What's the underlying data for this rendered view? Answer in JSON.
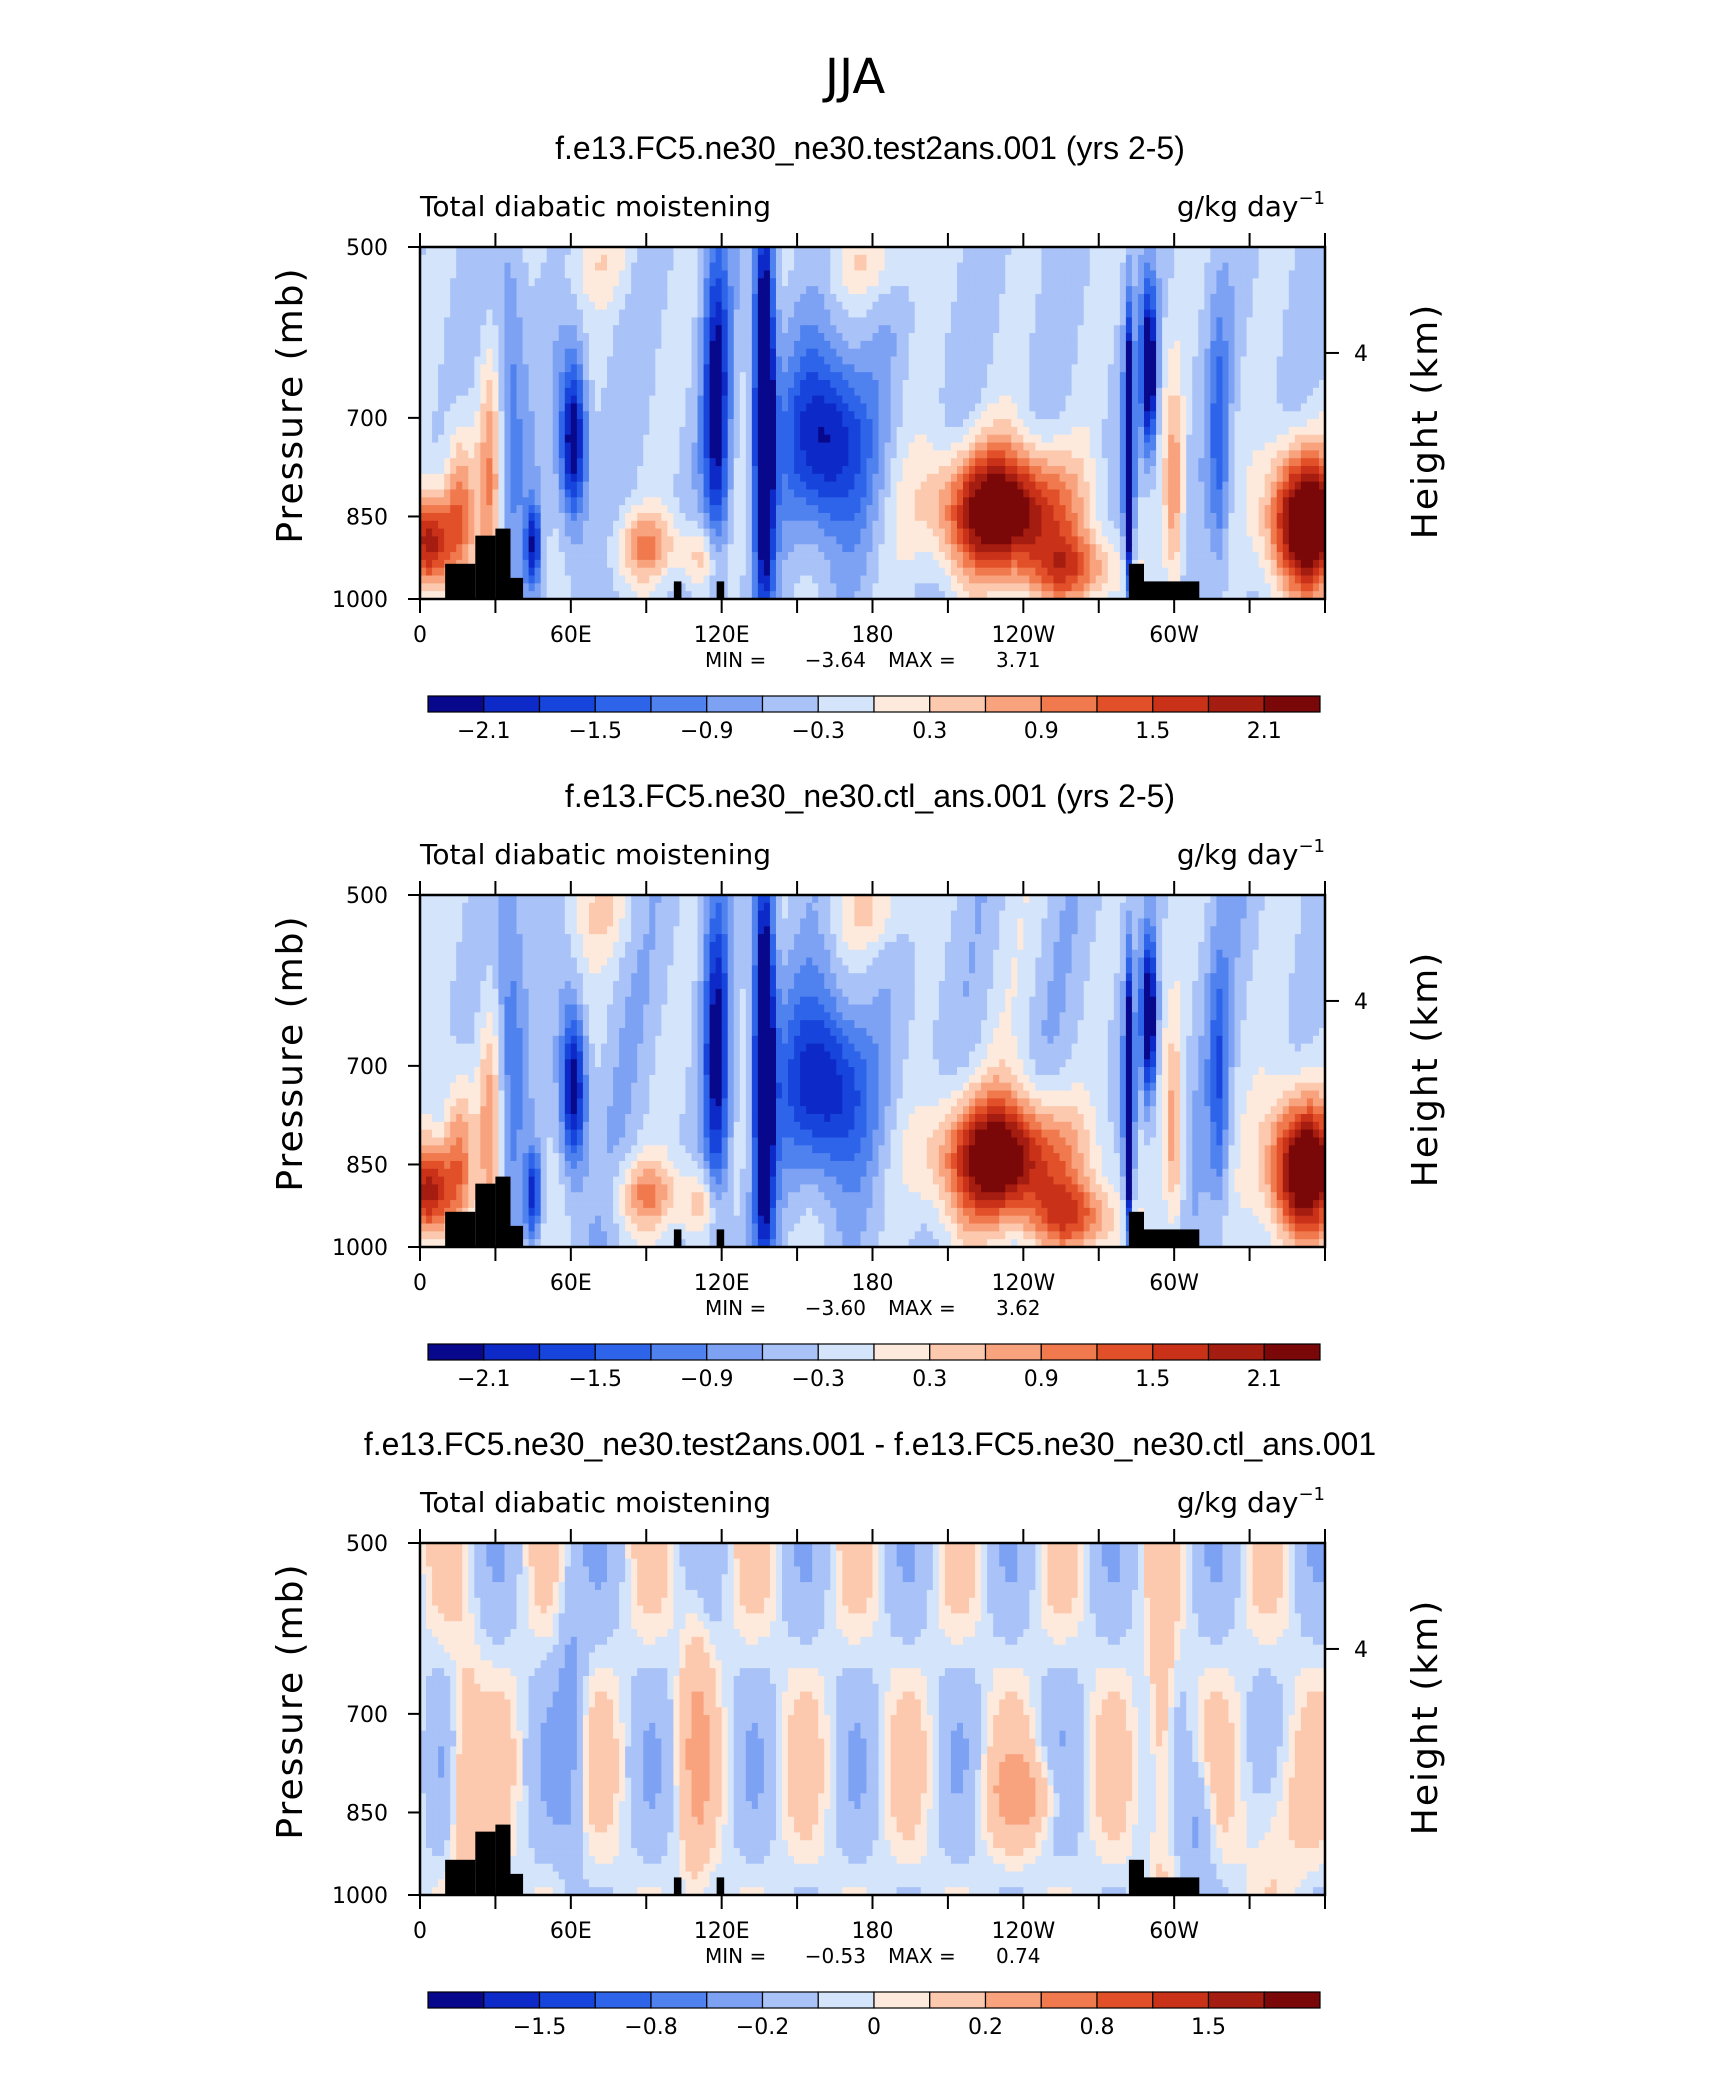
{
  "figure": {
    "main_title": "JJA"
  },
  "chart_data": [
    {
      "type": "heatmap",
      "title": "f.e13.FC5.ne30_ne30.test2ans.001 (yrs 2-5)",
      "left_label": "Total diabatic moistening",
      "units_label": "g/kg day",
      "units_exponent": "−1",
      "ylabel": "Pressure (mb)",
      "y2label": "Height (km)",
      "x_tick_labels": [
        "0",
        "60E",
        "120E",
        "180",
        "120W",
        "60W"
      ],
      "y_tick_labels": [
        "500",
        "700",
        "850",
        "1000"
      ],
      "y2_tick_labels": [
        "4"
      ],
      "minmax": {
        "min_label": "MIN =",
        "min": "−3.64",
        "max_label": "MAX =",
        "max": "3.71"
      },
      "colorbar": {
        "tick_labels": [
          "−2.1",
          "−1.5",
          "−0.9",
          "−0.3",
          "0.3",
          "0.9",
          "1.5",
          "2.1"
        ],
        "colors": [
          "#08088c",
          "#0d2ac8",
          "#1745dc",
          "#2e64ea",
          "#4f82ef",
          "#7ea2f3",
          "#a9c2f7",
          "#d4e4fb",
          "#feeadc",
          "#fcc9ae",
          "#f8a27e",
          "#f07a4e",
          "#e2502a",
          "#c93218",
          "#a51c10",
          "#7a0808"
        ]
      },
      "field_scale": 3.7
    },
    {
      "type": "heatmap",
      "title": "f.e13.FC5.ne30_ne30.ctl_ans.001 (yrs 2-5)",
      "left_label": "Total diabatic moistening",
      "units_label": "g/kg day",
      "units_exponent": "−1",
      "ylabel": "Pressure (mb)",
      "y2label": "Height (km)",
      "x_tick_labels": [
        "0",
        "60E",
        "120E",
        "180",
        "120W",
        "60W"
      ],
      "y_tick_labels": [
        "500",
        "700",
        "850",
        "1000"
      ],
      "y2_tick_labels": [
        "4"
      ],
      "minmax": {
        "min_label": "MIN =",
        "min": "−3.60",
        "max_label": "MAX =",
        "max": "3.62"
      },
      "colorbar": {
        "tick_labels": [
          "−2.1",
          "−1.5",
          "−0.9",
          "−0.3",
          "0.3",
          "0.9",
          "1.5",
          "2.1"
        ],
        "colors": [
          "#08088c",
          "#0d2ac8",
          "#1745dc",
          "#2e64ea",
          "#4f82ef",
          "#7ea2f3",
          "#a9c2f7",
          "#d4e4fb",
          "#feeadc",
          "#fcc9ae",
          "#f8a27e",
          "#f07a4e",
          "#e2502a",
          "#c93218",
          "#a51c10",
          "#7a0808"
        ]
      },
      "field_scale": 3.6
    },
    {
      "type": "heatmap",
      "title": "f.e13.FC5.ne30_ne30.test2ans.001 - f.e13.FC5.ne30_ne30.ctl_ans.001",
      "left_label": "Total diabatic moistening",
      "units_label": "g/kg day",
      "units_exponent": "−1",
      "ylabel": "Pressure (mb)",
      "y2label": "Height (km)",
      "x_tick_labels": [
        "0",
        "60E",
        "120E",
        "180",
        "120W",
        "60W"
      ],
      "y_tick_labels": [
        "500",
        "700",
        "850",
        "1000"
      ],
      "y2_tick_labels": [
        "4"
      ],
      "minmax": {
        "min_label": "MIN =",
        "min": "−0.53",
        "max_label": "MAX =",
        "max": "0.74"
      },
      "colorbar": {
        "tick_labels": [
          "−1.5",
          "−0.8",
          "−0.2",
          "0",
          "0.2",
          "0.8",
          "1.5"
        ],
        "colors": [
          "#08088c",
          "#0d2ac8",
          "#1745dc",
          "#2e64ea",
          "#4f82ef",
          "#7ea2f3",
          "#a9c2f7",
          "#d4e4fb",
          "#feeadc",
          "#fcc9ae",
          "#f8a27e",
          "#f07a4e",
          "#e2502a",
          "#c93218",
          "#a51c10",
          "#7a0808"
        ]
      },
      "field_scale": 0.7
    }
  ]
}
